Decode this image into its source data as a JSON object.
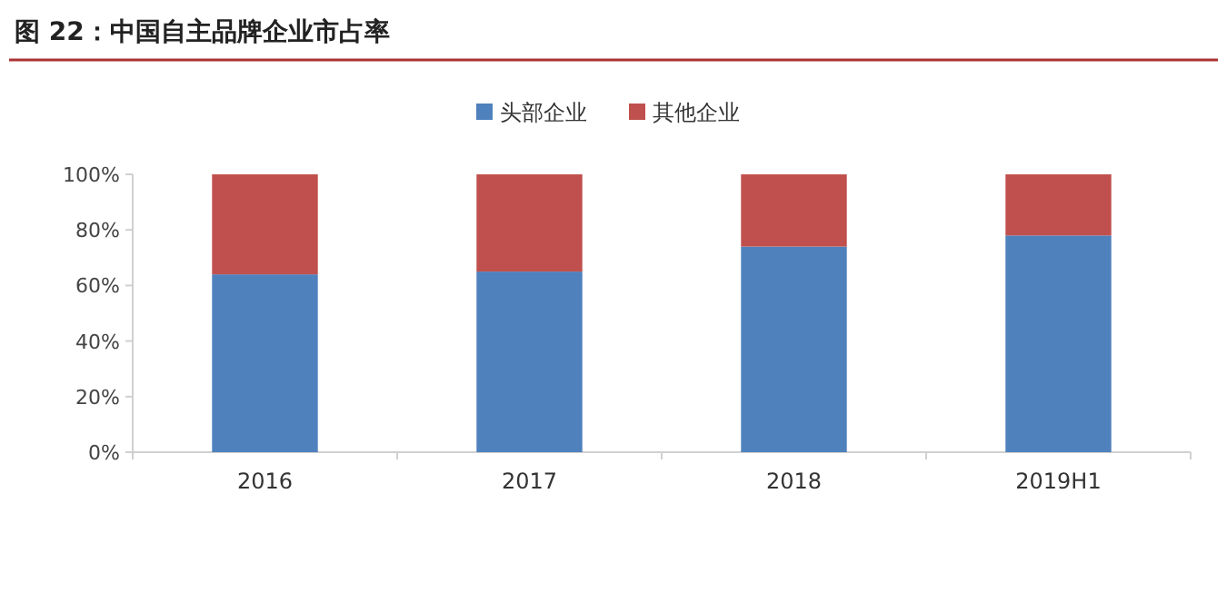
{
  "chart_data": {
    "type": "bar",
    "title": "图 22：中国自主品牌企业市占率",
    "categories": [
      "2016",
      "2017",
      "2018",
      "2019H1"
    ],
    "stacked": true,
    "series": [
      {
        "name": "头部企业",
        "color": "#4f81bd",
        "values": [
          64,
          65,
          74,
          78
        ]
      },
      {
        "name": "其他企业",
        "color": "#c0504d",
        "values": [
          36,
          35,
          26,
          22
        ]
      }
    ],
    "ylim": [
      0,
      100
    ],
    "yticks": [
      {
        "value": 0,
        "label": "0%"
      },
      {
        "value": 20,
        "label": "20%"
      },
      {
        "value": 40,
        "label": "40%"
      },
      {
        "value": 60,
        "label": "60%"
      },
      {
        "value": 80,
        "label": "80%"
      },
      {
        "value": 100,
        "label": "100%"
      }
    ],
    "legend": "top",
    "grid": false
  }
}
